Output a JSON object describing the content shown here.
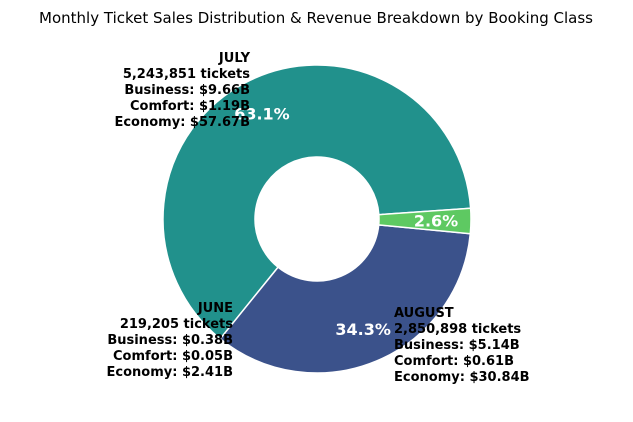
{
  "chart_data": {
    "type": "pie",
    "title": "Monthly Ticket Sales Distribution & Revenue Breakdown by Booking Class",
    "donut": true,
    "slices": [
      {
        "label": "JULY",
        "tickets": "5,243,851 tickets",
        "business": "Business: $9.66B",
        "comfort": "Comfort: $1.19B",
        "economy": "Economy: $57.67B",
        "value": 5243851,
        "percent_label": "63.1%",
        "color": "#21918c"
      },
      {
        "label": "AUGUST",
        "tickets": "2,850,898 tickets",
        "business": "Business: $5.14B",
        "comfort": "Comfort: $0.61B",
        "economy": "Economy: $30.84B",
        "value": 2850898,
        "percent_label": "34.3%",
        "color": "#3b528b"
      },
      {
        "label": "JUNE",
        "tickets": "219,205 tickets",
        "business": "Business: $0.38B",
        "comfort": "Comfort: $0.05B",
        "economy": "Economy: $2.41B",
        "value": 219205,
        "percent_label": "2.6%",
        "color": "#5ec962"
      }
    ]
  }
}
